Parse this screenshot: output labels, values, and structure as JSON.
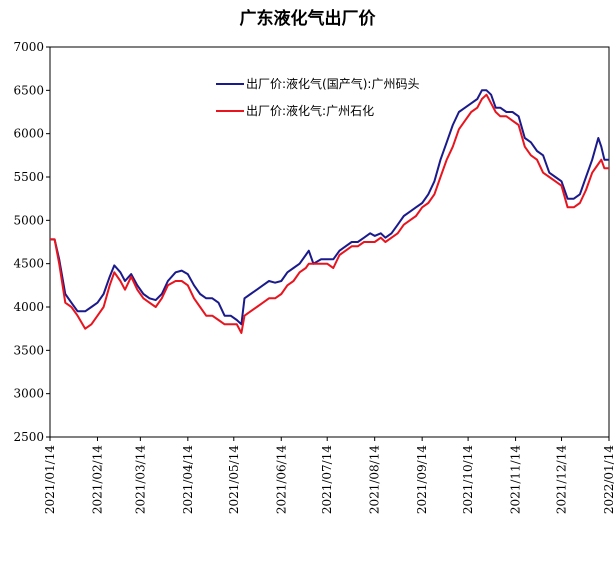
{
  "chart_data": {
    "type": "line",
    "title": "广东液化气出厂价",
    "ylim": [
      2500,
      7000
    ],
    "yticks": [
      2500,
      3000,
      3500,
      4000,
      4500,
      5000,
      5500,
      6000,
      6500,
      7000
    ],
    "xlim": [
      "2021-01-14",
      "2022-01-14"
    ],
    "xticks": [
      "2021/01/14",
      "2021/02/14",
      "2021/03/14",
      "2021/04/14",
      "2021/05/14",
      "2021/06/14",
      "2021/07/14",
      "2021/08/14",
      "2021/09/14",
      "2021/10/14",
      "2021/11/14",
      "2021/12/14",
      "2022/01/14"
    ],
    "grid": false,
    "legend_position": "top-center",
    "series": [
      {
        "name": "出厂价:液化气(国产气):广州码头",
        "color": "#1a1a8c",
        "points": [
          [
            "2021-01-14",
            4780
          ],
          [
            "2021-01-17",
            4780
          ],
          [
            "2021-01-20",
            4550
          ],
          [
            "2021-01-24",
            4150
          ],
          [
            "2021-01-28",
            4050
          ],
          [
            "2021-02-01",
            3950
          ],
          [
            "2021-02-06",
            3950
          ],
          [
            "2021-02-10",
            4000
          ],
          [
            "2021-02-14",
            4050
          ],
          [
            "2021-02-18",
            4150
          ],
          [
            "2021-02-22",
            4350
          ],
          [
            "2021-02-25",
            4480
          ],
          [
            "2021-03-01",
            4400
          ],
          [
            "2021-03-04",
            4300
          ],
          [
            "2021-03-08",
            4380
          ],
          [
            "2021-03-12",
            4250
          ],
          [
            "2021-03-16",
            4150
          ],
          [
            "2021-03-20",
            4100
          ],
          [
            "2021-03-24",
            4080
          ],
          [
            "2021-03-28",
            4150
          ],
          [
            "2021-04-01",
            4300
          ],
          [
            "2021-04-06",
            4400
          ],
          [
            "2021-04-10",
            4420
          ],
          [
            "2021-04-14",
            4380
          ],
          [
            "2021-04-18",
            4250
          ],
          [
            "2021-04-22",
            4150
          ],
          [
            "2021-04-26",
            4100
          ],
          [
            "2021-04-30",
            4100
          ],
          [
            "2021-05-04",
            4050
          ],
          [
            "2021-05-08",
            3900
          ],
          [
            "2021-05-12",
            3900
          ],
          [
            "2021-05-16",
            3850
          ],
          [
            "2021-05-19",
            3800
          ],
          [
            "2021-05-21",
            4100
          ],
          [
            "2021-05-25",
            4150
          ],
          [
            "2021-05-29",
            4200
          ],
          [
            "2021-06-02",
            4250
          ],
          [
            "2021-06-06",
            4300
          ],
          [
            "2021-06-10",
            4280
          ],
          [
            "2021-06-14",
            4300
          ],
          [
            "2021-06-18",
            4400
          ],
          [
            "2021-06-22",
            4450
          ],
          [
            "2021-06-26",
            4500
          ],
          [
            "2021-06-30",
            4600
          ],
          [
            "2021-07-02",
            4650
          ],
          [
            "2021-07-05",
            4500
          ],
          [
            "2021-07-10",
            4550
          ],
          [
            "2021-07-14",
            4550
          ],
          [
            "2021-07-18",
            4550
          ],
          [
            "2021-07-22",
            4650
          ],
          [
            "2021-07-26",
            4700
          ],
          [
            "2021-07-30",
            4750
          ],
          [
            "2021-08-03",
            4750
          ],
          [
            "2021-08-07",
            4800
          ],
          [
            "2021-08-11",
            4850
          ],
          [
            "2021-08-14",
            4820
          ],
          [
            "2021-08-18",
            4850
          ],
          [
            "2021-08-21",
            4800
          ],
          [
            "2021-08-25",
            4850
          ],
          [
            "2021-08-29",
            4950
          ],
          [
            "2021-09-02",
            5050
          ],
          [
            "2021-09-06",
            5100
          ],
          [
            "2021-09-10",
            5150
          ],
          [
            "2021-09-14",
            5200
          ],
          [
            "2021-09-18",
            5300
          ],
          [
            "2021-09-22",
            5450
          ],
          [
            "2021-09-26",
            5700
          ],
          [
            "2021-09-30",
            5900
          ],
          [
            "2021-10-04",
            6100
          ],
          [
            "2021-10-08",
            6250
          ],
          [
            "2021-10-12",
            6300
          ],
          [
            "2021-10-16",
            6350
          ],
          [
            "2021-10-20",
            6400
          ],
          [
            "2021-10-23",
            6500
          ],
          [
            "2021-10-26",
            6500
          ],
          [
            "2021-10-29",
            6450
          ],
          [
            "2021-11-01",
            6300
          ],
          [
            "2021-11-04",
            6300
          ],
          [
            "2021-11-08",
            6250
          ],
          [
            "2021-11-12",
            6250
          ],
          [
            "2021-11-16",
            6200
          ],
          [
            "2021-11-20",
            5950
          ],
          [
            "2021-11-24",
            5900
          ],
          [
            "2021-11-28",
            5800
          ],
          [
            "2021-12-02",
            5750
          ],
          [
            "2021-12-06",
            5550
          ],
          [
            "2021-12-10",
            5500
          ],
          [
            "2021-12-14",
            5450
          ],
          [
            "2021-12-18",
            5250
          ],
          [
            "2021-12-22",
            5250
          ],
          [
            "2021-12-26",
            5300
          ],
          [
            "2021-12-30",
            5500
          ],
          [
            "2022-01-03",
            5700
          ],
          [
            "2022-01-07",
            5950
          ],
          [
            "2022-01-09",
            5850
          ],
          [
            "2022-01-11",
            5700
          ],
          [
            "2022-01-14",
            5700
          ]
        ]
      },
      {
        "name": "出厂价:液化气:广州石化",
        "color": "#e8141e",
        "points": [
          [
            "2021-01-14",
            4780
          ],
          [
            "2021-01-17",
            4780
          ],
          [
            "2021-01-20",
            4500
          ],
          [
            "2021-01-24",
            4050
          ],
          [
            "2021-01-28",
            4000
          ],
          [
            "2021-02-01",
            3900
          ],
          [
            "2021-02-06",
            3750
          ],
          [
            "2021-02-10",
            3800
          ],
          [
            "2021-02-14",
            3900
          ],
          [
            "2021-02-18",
            4000
          ],
          [
            "2021-02-22",
            4250
          ],
          [
            "2021-02-25",
            4400
          ],
          [
            "2021-03-01",
            4300
          ],
          [
            "2021-03-04",
            4200
          ],
          [
            "2021-03-08",
            4350
          ],
          [
            "2021-03-12",
            4200
          ],
          [
            "2021-03-16",
            4100
          ],
          [
            "2021-03-20",
            4050
          ],
          [
            "2021-03-24",
            4000
          ],
          [
            "2021-03-28",
            4100
          ],
          [
            "2021-04-01",
            4250
          ],
          [
            "2021-04-06",
            4300
          ],
          [
            "2021-04-10",
            4300
          ],
          [
            "2021-04-14",
            4250
          ],
          [
            "2021-04-18",
            4100
          ],
          [
            "2021-04-22",
            4000
          ],
          [
            "2021-04-26",
            3900
          ],
          [
            "2021-04-30",
            3900
          ],
          [
            "2021-05-04",
            3850
          ],
          [
            "2021-05-08",
            3800
          ],
          [
            "2021-05-12",
            3800
          ],
          [
            "2021-05-16",
            3800
          ],
          [
            "2021-05-19",
            3700
          ],
          [
            "2021-05-21",
            3900
          ],
          [
            "2021-05-25",
            3950
          ],
          [
            "2021-05-29",
            4000
          ],
          [
            "2021-06-02",
            4050
          ],
          [
            "2021-06-06",
            4100
          ],
          [
            "2021-06-10",
            4100
          ],
          [
            "2021-06-14",
            4150
          ],
          [
            "2021-06-18",
            4250
          ],
          [
            "2021-06-22",
            4300
          ],
          [
            "2021-06-26",
            4400
          ],
          [
            "2021-06-30",
            4450
          ],
          [
            "2021-07-02",
            4500
          ],
          [
            "2021-07-05",
            4500
          ],
          [
            "2021-07-10",
            4500
          ],
          [
            "2021-07-14",
            4500
          ],
          [
            "2021-07-18",
            4450
          ],
          [
            "2021-07-22",
            4600
          ],
          [
            "2021-07-26",
            4650
          ],
          [
            "2021-07-30",
            4700
          ],
          [
            "2021-08-03",
            4700
          ],
          [
            "2021-08-07",
            4750
          ],
          [
            "2021-08-11",
            4750
          ],
          [
            "2021-08-14",
            4750
          ],
          [
            "2021-08-18",
            4800
          ],
          [
            "2021-08-21",
            4750
          ],
          [
            "2021-08-25",
            4800
          ],
          [
            "2021-08-29",
            4850
          ],
          [
            "2021-09-02",
            4950
          ],
          [
            "2021-09-06",
            5000
          ],
          [
            "2021-09-10",
            5050
          ],
          [
            "2021-09-14",
            5150
          ],
          [
            "2021-09-18",
            5200
          ],
          [
            "2021-09-22",
            5300
          ],
          [
            "2021-09-26",
            5500
          ],
          [
            "2021-09-30",
            5700
          ],
          [
            "2021-10-04",
            5850
          ],
          [
            "2021-10-08",
            6050
          ],
          [
            "2021-10-12",
            6150
          ],
          [
            "2021-10-16",
            6250
          ],
          [
            "2021-10-20",
            6300
          ],
          [
            "2021-10-23",
            6400
          ],
          [
            "2021-10-26",
            6450
          ],
          [
            "2021-10-29",
            6350
          ],
          [
            "2021-11-01",
            6250
          ],
          [
            "2021-11-04",
            6200
          ],
          [
            "2021-11-08",
            6200
          ],
          [
            "2021-11-12",
            6150
          ],
          [
            "2021-11-16",
            6100
          ],
          [
            "2021-11-20",
            5850
          ],
          [
            "2021-11-24",
            5750
          ],
          [
            "2021-11-28",
            5700
          ],
          [
            "2021-12-02",
            5550
          ],
          [
            "2021-12-06",
            5500
          ],
          [
            "2021-12-10",
            5450
          ],
          [
            "2021-12-14",
            5400
          ],
          [
            "2021-12-18",
            5150
          ],
          [
            "2021-12-22",
            5150
          ],
          [
            "2021-12-26",
            5200
          ],
          [
            "2021-12-30",
            5350
          ],
          [
            "2022-01-03",
            5550
          ],
          [
            "2022-01-07",
            5650
          ],
          [
            "2022-01-09",
            5700
          ],
          [
            "2022-01-11",
            5600
          ],
          [
            "2022-01-14",
            5600
          ]
        ]
      }
    ]
  }
}
